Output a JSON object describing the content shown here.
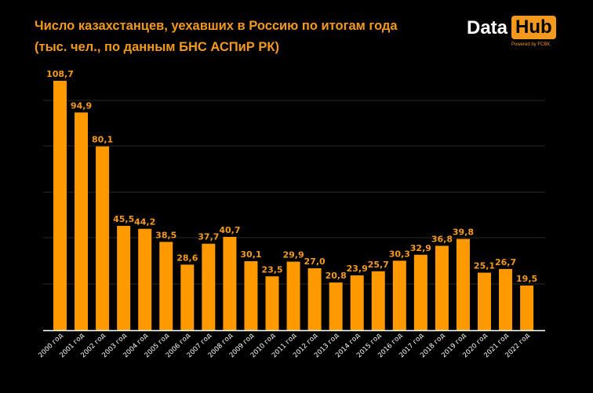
{
  "title_line1": "Число казахстанцев, уехавших в Россию по итогам года",
  "title_line2": "(тыс. чел., по данным БНС АСПиР РК)",
  "logo": {
    "word1": "Data",
    "word2": "Hub",
    "tagline": "Powered by FCBK"
  },
  "colors": {
    "bar": "#ff9900",
    "label": "#f39a1e",
    "background": "#000000",
    "grid": "#2a2a2a"
  },
  "chart_data": {
    "type": "bar",
    "title": "Число казахстанцев, уехавших в Россию по итогам года",
    "subtitle": "(тыс. чел., по данным БНС АСПиР РК)",
    "categories": [
      "2000 год",
      "2001 год",
      "2002 год",
      "2003 год",
      "2004 год",
      "2005 год",
      "2006 год",
      "2007 год",
      "2008 год",
      "2009 год",
      "2010 год",
      "2011 год",
      "2012 год",
      "2013 год",
      "2014 год",
      "2015 год",
      "2016 год",
      "2017 год",
      "2018 год",
      "2019 год",
      "2020 год",
      "2021 год",
      "2022 год"
    ],
    "values": [
      108.7,
      94.9,
      80.1,
      45.5,
      44.2,
      38.5,
      28.6,
      37.7,
      40.7,
      30.1,
      23.5,
      29.9,
      27.0,
      20.8,
      23.9,
      25.7,
      30.3,
      32.9,
      36.8,
      39.8,
      25.1,
      26.7,
      19.5
    ],
    "value_labels": [
      "108,7",
      "94,9",
      "80,1",
      "45,5",
      "44,2",
      "38,5",
      "28,6",
      "37,7",
      "40,7",
      "30,1",
      "23,5",
      "29,9",
      "27,0",
      "20,8",
      "23,9",
      "25,7",
      "30,3",
      "32,9",
      "36,8",
      "39,8",
      "25,1",
      "26,7",
      "19,5"
    ],
    "ylim": [
      0,
      110
    ],
    "grid": true,
    "legend": "none",
    "xlabel": "",
    "ylabel": ""
  }
}
